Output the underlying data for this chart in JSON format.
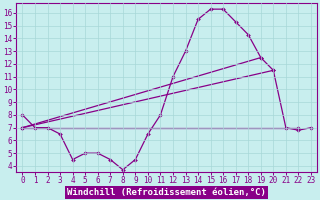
{
  "xlabel": "Windchill (Refroidissement éolien,°C)",
  "background_color": "#c8eeee",
  "grid_color": "#a8d8d8",
  "line_color": "#880088",
  "axis_bg": "#c8eeee",
  "xlim": [
    -0.5,
    23.5
  ],
  "ylim": [
    3.5,
    16.8
  ],
  "xticks": [
    0,
    1,
    2,
    3,
    4,
    5,
    6,
    7,
    8,
    9,
    10,
    11,
    12,
    13,
    14,
    15,
    16,
    17,
    18,
    19,
    20,
    21,
    22,
    23
  ],
  "yticks": [
    4,
    5,
    6,
    7,
    8,
    9,
    10,
    11,
    12,
    13,
    14,
    15,
    16
  ],
  "line1_x": [
    0,
    1,
    2,
    3,
    4,
    5,
    6,
    7,
    8,
    9,
    10,
    11,
    12,
    13,
    14,
    15,
    16,
    17,
    18,
    19,
    20,
    21,
    22,
    23
  ],
  "line1_y": [
    8.0,
    7.0,
    7.0,
    6.5,
    4.5,
    5.0,
    5.0,
    4.5,
    3.7,
    4.5,
    6.5,
    8.0,
    11.0,
    13.0,
    15.5,
    16.3,
    16.3,
    15.3,
    14.3,
    12.5,
    11.5,
    7.0,
    6.8,
    7.0
  ],
  "line2_x": [
    0,
    22
  ],
  "line2_y": [
    7.0,
    7.0
  ],
  "line3_x": [
    0,
    20
  ],
  "line3_y": [
    7.0,
    11.5
  ],
  "line4_x": [
    0,
    19
  ],
  "line4_y": [
    7.0,
    12.5
  ],
  "marker_size": 2.0,
  "linewidth": 0.9,
  "tick_fontsize": 5.5,
  "xlabel_fontsize": 6.5,
  "xlabel_color": "#880088",
  "spine_color": "#880088",
  "xaxis_label_bg": "#880088"
}
